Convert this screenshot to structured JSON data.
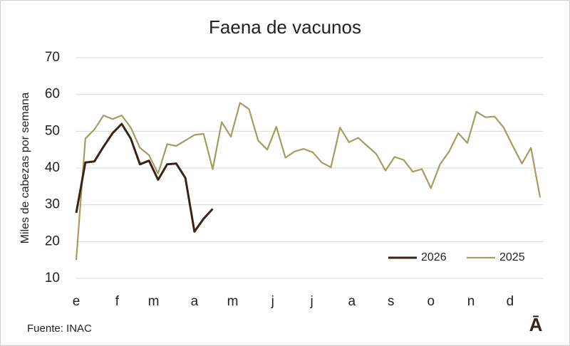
{
  "chart_data": {
    "type": "line",
    "title": "Faena de vacunos",
    "y_label": "Miles de cabezas por semana",
    "source": "Fuente: INAC",
    "logo": "Ā",
    "x": [
      1,
      2,
      3,
      4,
      5,
      6,
      7,
      8,
      9,
      10,
      11,
      12,
      13,
      14,
      15,
      16,
      17,
      18,
      19,
      20,
      21,
      22,
      23,
      24,
      25,
      26,
      27,
      28,
      29,
      30,
      31,
      32,
      33,
      34,
      35,
      36,
      37,
      38,
      39,
      40,
      41,
      42,
      43,
      44,
      45,
      46,
      47,
      48,
      49,
      50,
      51,
      52
    ],
    "xlim": [
      1,
      52
    ],
    "xticks": [
      {
        "value": 1,
        "label": "e"
      },
      {
        "value": 5.5,
        "label": "f"
      },
      {
        "value": 9.5,
        "label": "m"
      },
      {
        "value": 14,
        "label": "a"
      },
      {
        "value": 18.2,
        "label": "m"
      },
      {
        "value": 22.6,
        "label": "j"
      },
      {
        "value": 26.9,
        "label": "j"
      },
      {
        "value": 31.3,
        "label": "a"
      },
      {
        "value": 35.6,
        "label": "s"
      },
      {
        "value": 40,
        "label": "o"
      },
      {
        "value": 44.4,
        "label": "n"
      },
      {
        "value": 48.7,
        "label": "d"
      }
    ],
    "ylim": [
      10,
      70
    ],
    "yticks": [
      10,
      20,
      30,
      40,
      50,
      60,
      70
    ],
    "grid": true,
    "legend": "bottom-right",
    "series": [
      {
        "name": "2026",
        "color": "#3a2315",
        "values": [
          27.8,
          41.5,
          41.8,
          45.8,
          49.5,
          52,
          48,
          41,
          42,
          36.8,
          41,
          41.2,
          37.3,
          22.7,
          26.2,
          28.9,
          null,
          null,
          null,
          null,
          null,
          null,
          null,
          null,
          null,
          null,
          null,
          null,
          null,
          null,
          null,
          null,
          null,
          null,
          null,
          null,
          null,
          null,
          null,
          null,
          null,
          null,
          null,
          null,
          null,
          null,
          null,
          null,
          null,
          null,
          null,
          null
        ]
      },
      {
        "name": "2025",
        "color": "#a59c5f",
        "values": [
          15,
          48,
          50.5,
          54.3,
          53.3,
          54.3,
          51,
          45.5,
          43.5,
          38.5,
          46.5,
          46,
          47.5,
          49,
          49.3,
          39.7,
          52.5,
          48.5,
          57.7,
          56,
          47.5,
          45,
          51.2,
          42.8,
          44.5,
          45.2,
          44.3,
          41.5,
          40.2,
          51,
          47,
          48.2,
          46,
          43.8,
          39.3,
          43,
          42.2,
          39,
          39.7,
          34.5,
          41,
          44.5,
          49.5,
          46.8,
          55.3,
          53.8,
          54,
          51,
          46,
          41.2,
          45.5,
          32
        ]
      }
    ]
  }
}
